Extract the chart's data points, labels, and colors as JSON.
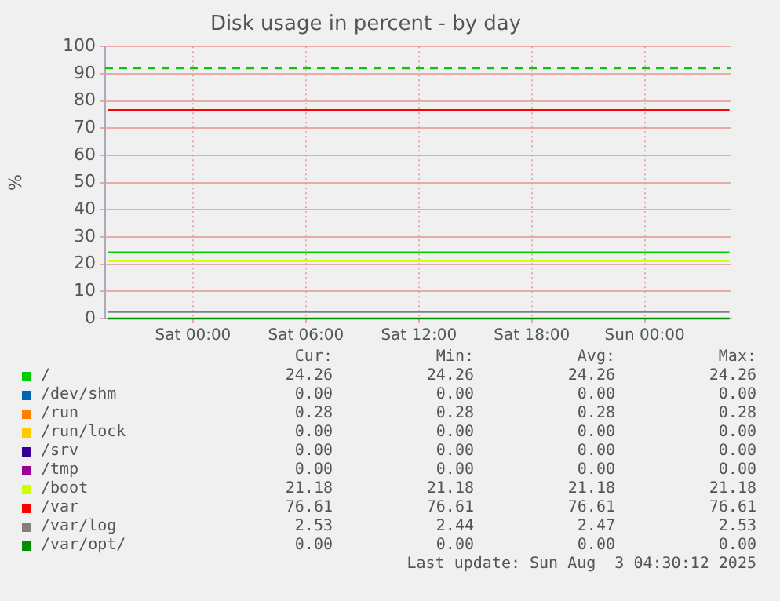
{
  "chart_data": {
    "type": "line",
    "title": "Disk usage in percent - by day",
    "ylabel": "%",
    "xlim": [
      "2025-08-01T19:20",
      "2025-08-03T04:36"
    ],
    "xticks": [
      {
        "value": "2025-08-02T00:00",
        "label": "Sat 00:00"
      },
      {
        "value": "2025-08-02T06:00",
        "label": "Sat 06:00"
      },
      {
        "value": "2025-08-02T12:00",
        "label": "Sat 12:00"
      },
      {
        "value": "2025-08-02T18:00",
        "label": "Sat 18:00"
      },
      {
        "value": "2025-08-03T00:00",
        "label": "Sun 00:00"
      }
    ],
    "ylim": [
      0,
      100
    ],
    "yticks": [
      0,
      10,
      20,
      30,
      40,
      50,
      60,
      70,
      80,
      90,
      100
    ],
    "grid": true,
    "legend": "bottom",
    "marker": "none",
    "line_style": "solid",
    "x": [
      "2025-08-01T19:30",
      "2025-08-03T04:30"
    ],
    "series": [
      {
        "name": "/",
        "color": "#00cc00",
        "values": [
          24.3,
          24.3
        ]
      },
      {
        "name": "/dev/shm",
        "color": "#0066b3",
        "values": [
          null,
          null
        ]
      },
      {
        "name": "/run",
        "color": "#ff8000",
        "values": [
          null,
          null
        ]
      },
      {
        "name": "/run/lock",
        "color": "#ffcc00",
        "values": [
          null,
          null
        ]
      },
      {
        "name": "/srv",
        "color": "#330099",
        "values": [
          null,
          null
        ]
      },
      {
        "name": "/tmp",
        "color": "#990099",
        "values": [
          null,
          null
        ]
      },
      {
        "name": "/boot",
        "color": "#ccff00",
        "values": [
          21.2,
          21.2
        ]
      },
      {
        "name": "/var",
        "color": "#ff0000",
        "values": [
          76.6,
          76.6
        ]
      },
      {
        "name": "/var/log",
        "color": "#808080",
        "values": [
          2.5,
          2.5
        ]
      },
      {
        "name": "/var/opt/",
        "color": "#008f00",
        "values": [
          0,
          0
        ]
      }
    ],
    "ref_lines": [
      {
        "axis": "y",
        "value": 92,
        "color": "#00cc00",
        "line_style": "dashed"
      }
    ],
    "annotations": [
      "Cur:",
      "Min:",
      "Avg:",
      "Max:",
      "24.26",
      "24.26",
      "24.26",
      "24.26",
      "0.00",
      "0.00",
      "0.00",
      "0.00",
      "0.28",
      "0.28",
      "0.28",
      "0.28",
      "0.00",
      "0.00",
      "0.00",
      "0.00",
      "0.00",
      "0.00",
      "0.00",
      "0.00",
      "0.00",
      "0.00",
      "0.00",
      "0.00",
      "21.18",
      "21.18",
      "21.18",
      "21.18",
      "76.61",
      "76.61",
      "76.61",
      "76.61",
      "2.53",
      "2.44",
      "2.47",
      "2.53",
      "0.00",
      "0.00",
      "0.00",
      "0.00",
      "Last update: Sun Aug  3 04:30:12 2025"
    ]
  }
}
